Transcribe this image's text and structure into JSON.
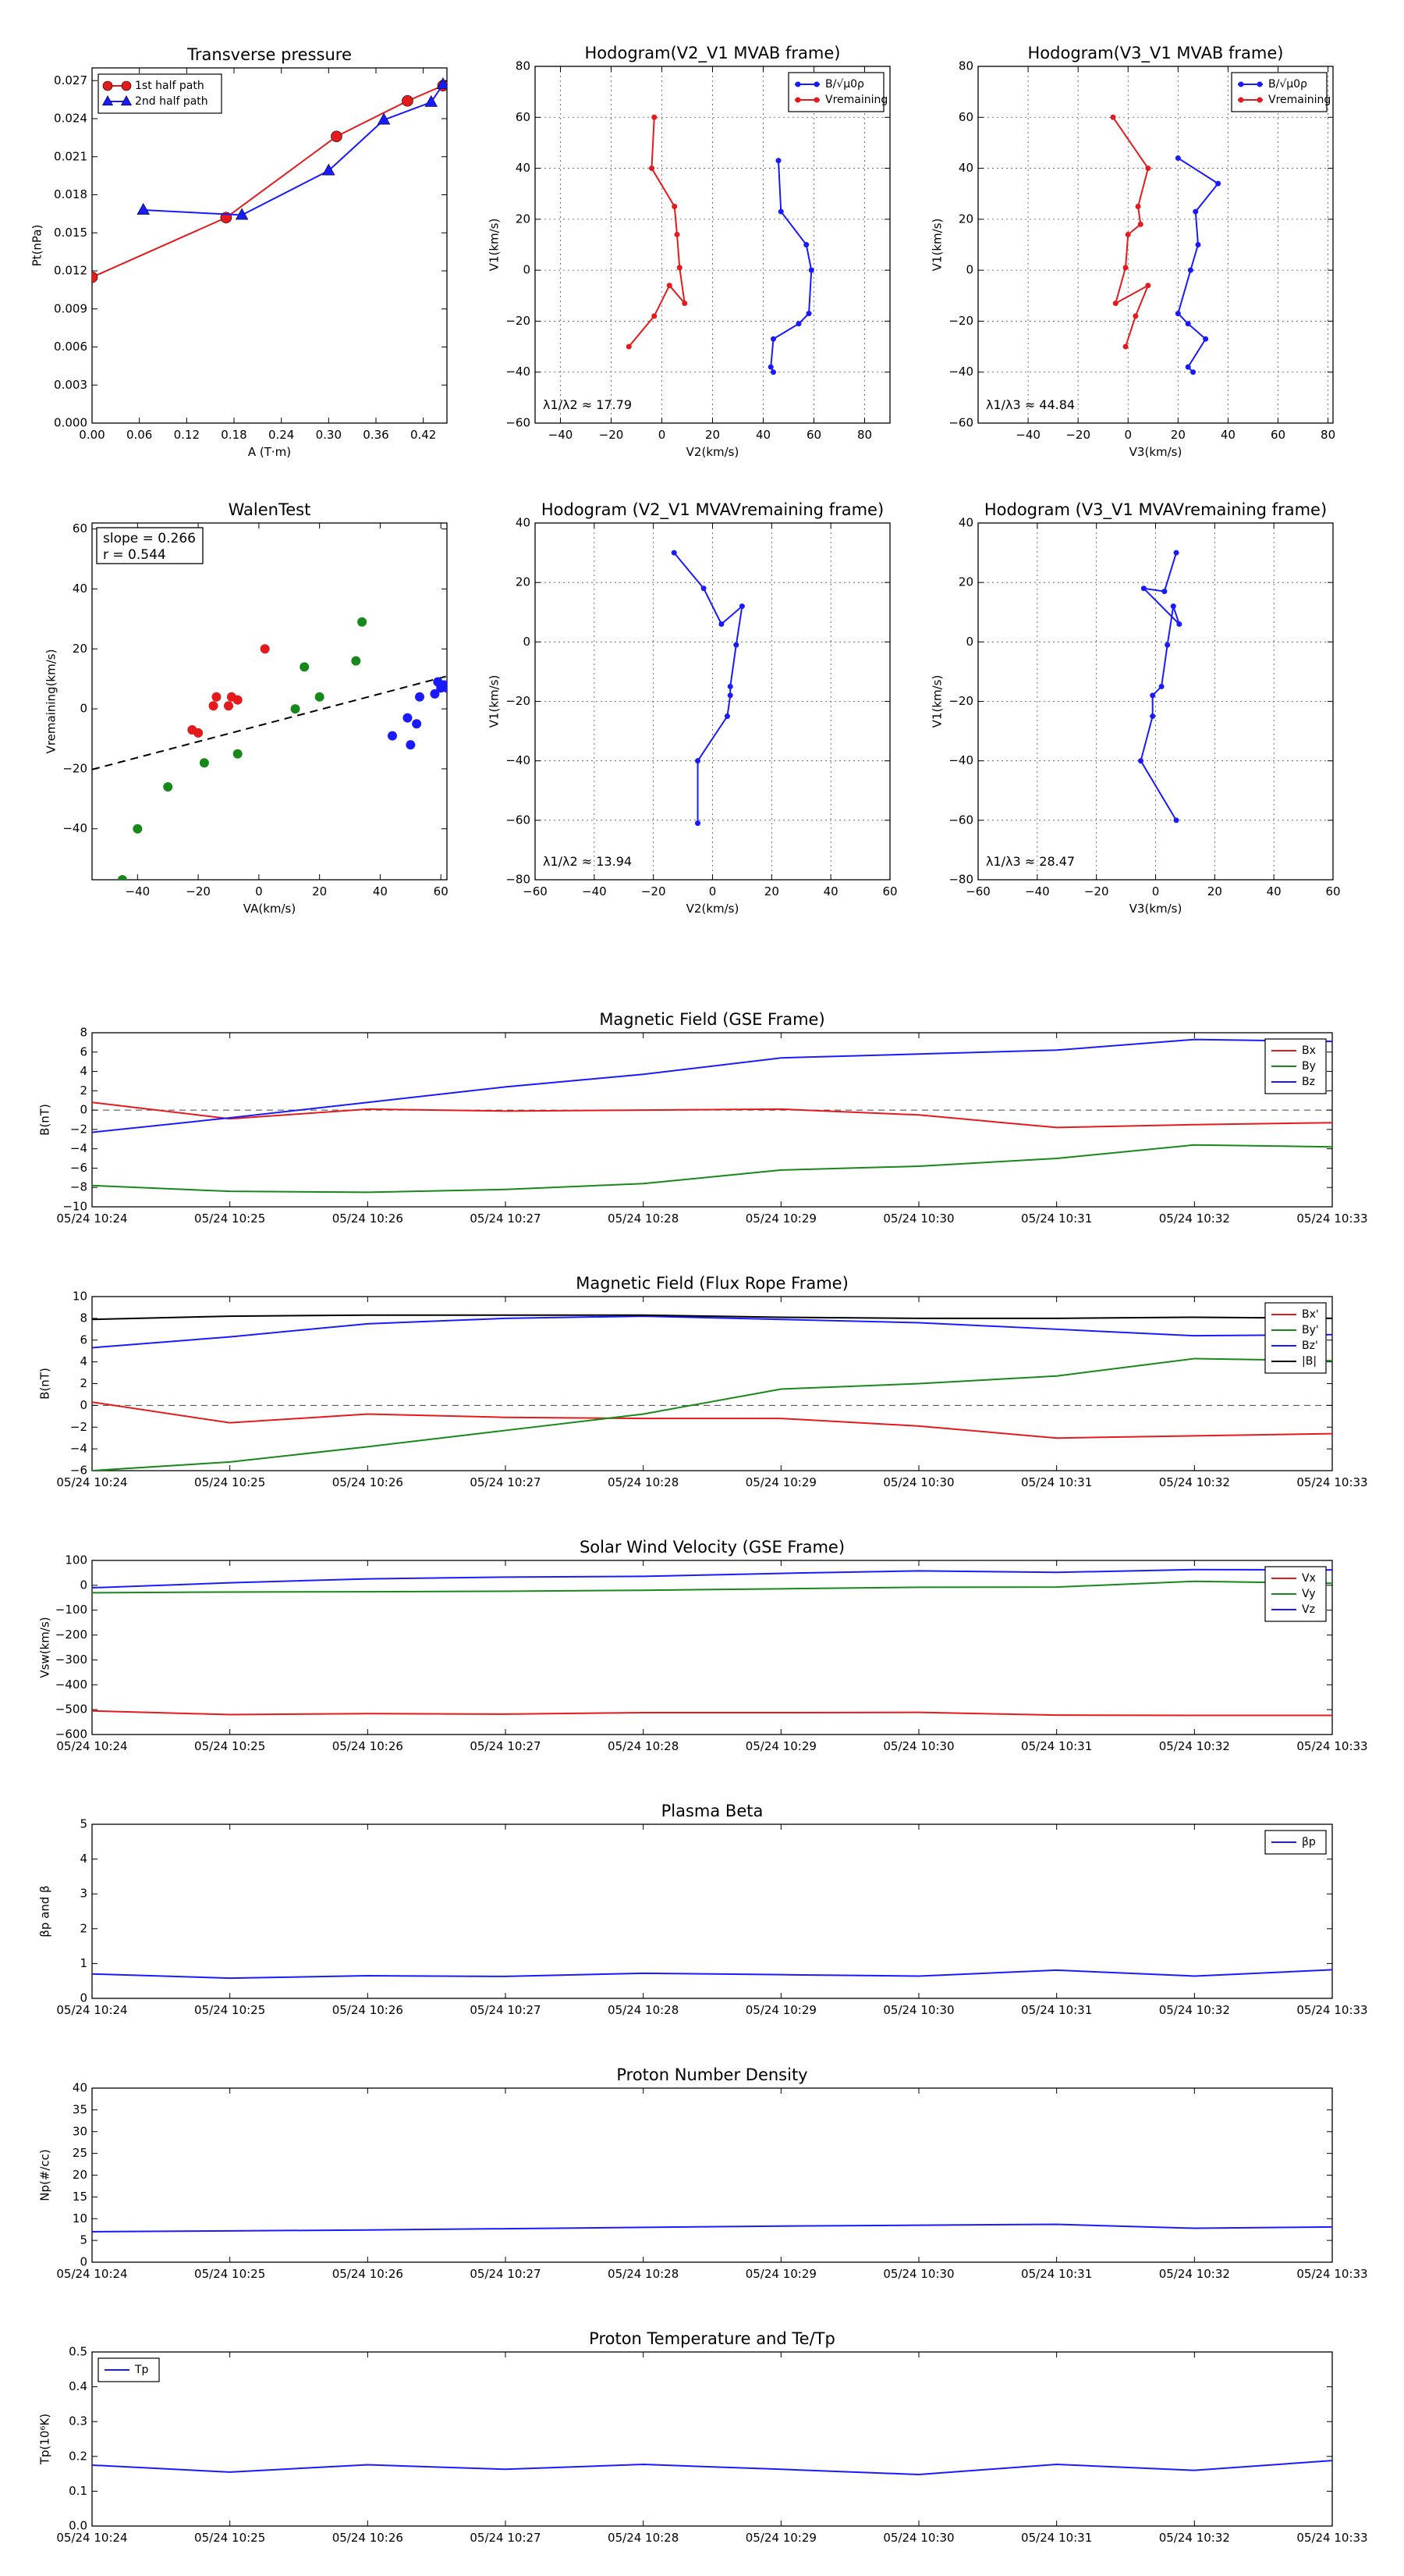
{
  "chart_data": [
    {
      "id": "transverse",
      "type": "line",
      "title": "Transverse pressure",
      "xlabel": "A (T·m)",
      "ylabel": "Pt(nPa)",
      "xlim": [
        0.0,
        0.45
      ],
      "ylim": [
        0.0,
        0.028
      ],
      "xticks": [
        "0.00",
        "0.06",
        "0.12",
        "0.18",
        "0.24",
        "0.30",
        "0.36",
        "0.42"
      ],
      "xtick_values": [
        0.0,
        0.06,
        0.12,
        0.18,
        0.24,
        0.3,
        0.36,
        0.42
      ],
      "yticks": [
        "0.000",
        "0.003",
        "0.006",
        "0.009",
        "0.012",
        "0.015",
        "0.018",
        "0.021",
        "0.024",
        "0.027"
      ],
      "ytick_values": [
        0.0,
        0.003,
        0.006,
        0.009,
        0.012,
        0.015,
        0.018,
        0.021,
        0.024,
        0.027
      ],
      "grid": false,
      "legend_position": "top-left",
      "series": [
        {
          "name": "1st half path",
          "color": "#e41a1c",
          "marker": "circle",
          "x": [
            0.0,
            0.17,
            0.31,
            0.4,
            0.445
          ],
          "y": [
            0.0115,
            0.0162,
            0.0226,
            0.0254,
            0.0266
          ]
        },
        {
          "name": "2nd half path",
          "color": "#1a1aff",
          "marker": "triangle",
          "x": [
            0.065,
            0.19,
            0.3,
            0.37,
            0.43,
            0.445
          ],
          "y": [
            0.0168,
            0.0164,
            0.0199,
            0.0239,
            0.0253,
            0.0267
          ]
        }
      ]
    },
    {
      "id": "hodo_v2_mvab",
      "type": "line",
      "title": "Hodogram(V2_V1 MVAB frame)",
      "xlabel": "V2(km/s)",
      "ylabel": "V1(km/s)",
      "xlim": [
        -50,
        90
      ],
      "ylim": [
        -60,
        80
      ],
      "xticks": [
        "−40",
        "−20",
        "0",
        "20",
        "40",
        "60",
        "80"
      ],
      "xtick_values": [
        -40,
        -20,
        0,
        20,
        40,
        60,
        80
      ],
      "yticks": [
        "−60",
        "−40",
        "−20",
        "0",
        "20",
        "40",
        "60",
        "80"
      ],
      "ytick_values": [
        -60,
        -40,
        -20,
        0,
        20,
        40,
        60,
        80
      ],
      "grid": true,
      "legend_position": "top-right",
      "annotation": "λ1/λ2 ≈ 17.79",
      "series": [
        {
          "name": "B/√μ0ρ",
          "color": "#1a1aff",
          "x": [
            44,
            43,
            44,
            54,
            58,
            59,
            57,
            47,
            46
          ],
          "y": [
            -40,
            -38,
            -27,
            -21,
            -17,
            0,
            10,
            23,
            43
          ]
        },
        {
          "name": "Vremaining",
          "color": "#e41a1c",
          "x": [
            -13,
            -3,
            3,
            9,
            7,
            6,
            5,
            -4,
            -3
          ],
          "y": [
            -30,
            -18,
            -6,
            -13,
            1,
            14,
            25,
            40,
            60
          ]
        }
      ]
    },
    {
      "id": "hodo_v3_mvab",
      "type": "line",
      "title": "Hodogram(V3_V1 MVAB frame)",
      "xlabel": "V3(km/s)",
      "ylabel": "V1(km/s)",
      "xlim": [
        -60,
        82
      ],
      "ylim": [
        -60,
        80
      ],
      "xticks": [
        "−40",
        "−20",
        "0",
        "20",
        "40",
        "60",
        "80"
      ],
      "xtick_values": [
        -40,
        -20,
        0,
        20,
        40,
        60,
        80
      ],
      "yticks": [
        "−60",
        "−40",
        "−20",
        "0",
        "20",
        "40",
        "60",
        "80"
      ],
      "ytick_values": [
        -60,
        -40,
        -20,
        0,
        20,
        40,
        60,
        80
      ],
      "grid": true,
      "legend_position": "top-right",
      "annotation": "λ1/λ3 ≈ 44.84",
      "series": [
        {
          "name": "B/√μ0ρ",
          "color": "#1a1aff",
          "x": [
            26,
            24,
            31,
            24,
            20,
            25,
            28,
            27,
            36,
            20
          ],
          "y": [
            -40,
            -38,
            -27,
            -21,
            -17,
            0,
            10,
            23,
            34,
            44
          ]
        },
        {
          "name": "Vremaining",
          "color": "#e41a1c",
          "x": [
            -1,
            3,
            8,
            -5,
            -1,
            0,
            5,
            4,
            8,
            -6
          ],
          "y": [
            -30,
            -18,
            -6,
            -13,
            1,
            14,
            18,
            25,
            40,
            60
          ]
        }
      ]
    },
    {
      "id": "walen",
      "type": "scatter",
      "title": "WalenTest",
      "xlabel": "VA(km/s)",
      "ylabel": "Vremaining(km/s)",
      "xlim": [
        -55,
        62
      ],
      "ylim": [
        -57,
        62
      ],
      "xticks": [
        "−40",
        "−20",
        "0",
        "20",
        "40",
        "60"
      ],
      "xtick_values": [
        -40,
        -20,
        0,
        20,
        40,
        60
      ],
      "yticks": [
        "−40",
        "−20",
        "0",
        "20",
        "40",
        "60"
      ],
      "ytick_values": [
        -40,
        -20,
        0,
        20,
        40,
        60
      ],
      "grid": false,
      "annotation_lines": [
        "slope = 0.266",
        "r = 0.544"
      ],
      "fit": {
        "slope": 0.266,
        "intercept": -5.6
      },
      "series": [
        {
          "color": "#e41a1c",
          "x": [
            -22,
            -20,
            -15,
            -14,
            -10,
            -9,
            -7,
            2
          ],
          "y": [
            -7,
            -8,
            1,
            4,
            1,
            4,
            3,
            20
          ]
        },
        {
          "color": "#16891a",
          "x": [
            -45,
            -40,
            -30,
            -18,
            -7,
            12,
            15,
            20,
            32,
            34
          ],
          "y": [
            -57,
            -40,
            -26,
            -18,
            -15,
            0,
            14,
            4,
            16,
            29
          ]
        },
        {
          "color": "#1a1aff",
          "x": [
            44,
            49,
            50,
            52,
            53,
            58,
            59,
            60,
            61,
            62
          ],
          "y": [
            -9,
            -3,
            -12,
            -5,
            4,
            5,
            9,
            7,
            8,
            7
          ]
        }
      ]
    },
    {
      "id": "hodo_v2_mvav",
      "type": "line",
      "title": "Hodogram (V2_V1 MVAVremaining frame)",
      "xlabel": "V2(km/s)",
      "ylabel": "V1(km/s)",
      "xlim": [
        -60,
        60
      ],
      "ylim": [
        -80,
        40
      ],
      "xticks": [
        "−60",
        "−40",
        "−20",
        "0",
        "20",
        "40",
        "60"
      ],
      "xtick_values": [
        -60,
        -40,
        -20,
        0,
        20,
        40,
        60
      ],
      "yticks": [
        "−80",
        "−60",
        "−40",
        "−20",
        "0",
        "20",
        "40"
      ],
      "ytick_values": [
        -80,
        -60,
        -40,
        -20,
        0,
        20,
        40
      ],
      "grid": true,
      "annotation": "λ1/λ2 ≈ 13.94",
      "series": [
        {
          "color": "#1a1aff",
          "x": [
            -5,
            -5,
            5,
            6,
            6,
            8,
            10,
            3,
            -3,
            -13
          ],
          "y": [
            -61,
            -40,
            -25,
            -18,
            -15,
            -1,
            12,
            6,
            18,
            30
          ]
        }
      ]
    },
    {
      "id": "hodo_v3_mvav",
      "type": "line",
      "title": "Hodogram (V3_V1 MVAVremaining frame)",
      "xlabel": "V3(km/s)",
      "ylabel": "V1(km/s)",
      "xlim": [
        -60,
        60
      ],
      "ylim": [
        -80,
        40
      ],
      "xticks": [
        "−60",
        "−40",
        "−20",
        "0",
        "20",
        "40",
        "60"
      ],
      "xtick_values": [
        -60,
        -40,
        -20,
        0,
        20,
        40,
        60
      ],
      "yticks": [
        "−80",
        "−60",
        "−40",
        "−20",
        "0",
        "20",
        "40"
      ],
      "ytick_values": [
        -80,
        -60,
        -40,
        -20,
        0,
        20,
        40
      ],
      "grid": true,
      "annotation": "λ1/λ3 ≈ 28.47",
      "series": [
        {
          "color": "#1a1aff",
          "x": [
            7,
            -5,
            -1,
            -1,
            2,
            4,
            6,
            8,
            -4,
            3,
            7
          ],
          "y": [
            -60,
            -40,
            -25,
            -18,
            -15,
            -1,
            12,
            6,
            18,
            17,
            30
          ]
        }
      ]
    },
    {
      "id": "mag_gse",
      "type": "line",
      "title": "Magnetic Field (GSE Frame)",
      "xlabel": "",
      "ylabel": "B(nT)",
      "categories": [
        "05/24 10:24",
        "05/24 10:25",
        "05/24 10:26",
        "05/24 10:27",
        "05/24 10:28",
        "05/24 10:29",
        "05/24 10:30",
        "05/24 10:31",
        "05/24 10:32",
        "05/24 10:33"
      ],
      "ylim": [
        -10,
        8
      ],
      "yticks": [
        "−10",
        "−8",
        "−6",
        "−4",
        "−2",
        "0",
        "2",
        "4",
        "6",
        "8"
      ],
      "ytick_values": [
        -10,
        -8,
        -6,
        -4,
        -2,
        0,
        2,
        4,
        6,
        8
      ],
      "zero_line": true,
      "legend_position": "top-right",
      "series": [
        {
          "name": "Bx",
          "color": "#e41a1c",
          "values": [
            0.8,
            -0.9,
            0.1,
            -0.1,
            0.0,
            0.1,
            -0.5,
            -1.8,
            -1.5,
            -1.3
          ]
        },
        {
          "name": "By",
          "color": "#16891a",
          "values": [
            -7.8,
            -8.4,
            -8.5,
            -8.2,
            -7.6,
            -6.2,
            -5.8,
            -5.0,
            -3.6,
            -3.8
          ]
        },
        {
          "name": "Bz",
          "color": "#1a1aff",
          "values": [
            -2.3,
            -0.8,
            0.8,
            2.4,
            3.7,
            5.4,
            5.8,
            6.2,
            7.3,
            7.1
          ]
        }
      ]
    },
    {
      "id": "mag_fr",
      "type": "line",
      "title": "Magnetic Field (Flux Rope Frame)",
      "xlabel": "",
      "ylabel": "B(nT)",
      "categories": [
        "05/24 10:24",
        "05/24 10:25",
        "05/24 10:26",
        "05/24 10:27",
        "05/24 10:28",
        "05/24 10:29",
        "05/24 10:30",
        "05/24 10:31",
        "05/24 10:32",
        "05/24 10:33"
      ],
      "ylim": [
        -6,
        10
      ],
      "yticks": [
        "−6",
        "−4",
        "−2",
        "0",
        "2",
        "4",
        "6",
        "8",
        "10"
      ],
      "ytick_values": [
        -6,
        -4,
        -2,
        0,
        2,
        4,
        6,
        8,
        10
      ],
      "zero_line": true,
      "legend_position": "top-right",
      "series": [
        {
          "name": "Bx'",
          "color": "#e41a1c",
          "values": [
            0.3,
            -1.6,
            -0.8,
            -1.1,
            -1.2,
            -1.2,
            -1.9,
            -3.0,
            -2.8,
            -2.6
          ]
        },
        {
          "name": "By'",
          "color": "#16891a",
          "values": [
            -6.0,
            -5.2,
            -3.8,
            -2.3,
            -0.8,
            1.5,
            2.0,
            2.7,
            4.3,
            4.1
          ]
        },
        {
          "name": "Bz'",
          "color": "#1a1aff",
          "values": [
            5.3,
            6.3,
            7.5,
            8.0,
            8.2,
            7.9,
            7.6,
            7.0,
            6.4,
            6.5
          ]
        },
        {
          "name": "|B|",
          "color": "#000000",
          "values": [
            7.9,
            8.2,
            8.3,
            8.3,
            8.3,
            8.1,
            8.0,
            8.0,
            8.1,
            8.0
          ]
        }
      ]
    },
    {
      "id": "vsw",
      "type": "line",
      "title": "Solar Wind Velocity (GSE Frame)",
      "xlabel": "",
      "ylabel": "Vsw(km/s)",
      "categories": [
        "05/24 10:24",
        "05/24 10:25",
        "05/24 10:26",
        "05/24 10:27",
        "05/24 10:28",
        "05/24 10:29",
        "05/24 10:30",
        "05/24 10:31",
        "05/24 10:32",
        "05/24 10:33"
      ],
      "ylim": [
        -600,
        100
      ],
      "yticks": [
        "−600",
        "−500",
        "−400",
        "−300",
        "−200",
        "−100",
        "0",
        "100"
      ],
      "ytick_values": [
        -600,
        -500,
        -400,
        -300,
        -200,
        -100,
        0,
        100
      ],
      "legend_position": "top-right",
      "series": [
        {
          "name": "Vx",
          "color": "#e41a1c",
          "values": [
            -505,
            -520,
            -516,
            -518,
            -512,
            -512,
            -511,
            -522,
            -523,
            -523
          ]
        },
        {
          "name": "Vy",
          "color": "#16891a",
          "values": [
            -30,
            -27,
            -26,
            -24,
            -20,
            -14,
            -8,
            -7,
            16,
            8
          ]
        },
        {
          "name": "Vz",
          "color": "#1a1aff",
          "values": [
            -10,
            10,
            26,
            33,
            36,
            48,
            58,
            52,
            63,
            62
          ]
        }
      ]
    },
    {
      "id": "beta",
      "type": "line",
      "title": "Plasma Beta",
      "xlabel": "",
      "ylabel": "βp and β",
      "categories": [
        "05/24 10:24",
        "05/24 10:25",
        "05/24 10:26",
        "05/24 10:27",
        "05/24 10:28",
        "05/24 10:29",
        "05/24 10:30",
        "05/24 10:31",
        "05/24 10:32",
        "05/24 10:33"
      ],
      "ylim": [
        0,
        5
      ],
      "yticks": [
        "0",
        "1",
        "2",
        "3",
        "4",
        "5"
      ],
      "ytick_values": [
        0,
        1,
        2,
        3,
        4,
        5
      ],
      "legend_position": "top-right",
      "series": [
        {
          "name": "βp",
          "color": "#1a1aff",
          "values": [
            0.7,
            0.58,
            0.65,
            0.63,
            0.72,
            0.68,
            0.64,
            0.81,
            0.64,
            0.82
          ]
        }
      ]
    },
    {
      "id": "np",
      "type": "line",
      "title": "Proton Number Density",
      "xlabel": "",
      "ylabel": "Np(#/cc)",
      "categories": [
        "05/24 10:24",
        "05/24 10:25",
        "05/24 10:26",
        "05/24 10:27",
        "05/24 10:28",
        "05/24 10:29",
        "05/24 10:30",
        "05/24 10:31",
        "05/24 10:32",
        "05/24 10:33"
      ],
      "ylim": [
        0,
        40
      ],
      "yticks": [
        "0",
        "5",
        "10",
        "15",
        "20",
        "25",
        "30",
        "35",
        "40"
      ],
      "ytick_values": [
        0,
        5,
        10,
        15,
        20,
        25,
        30,
        35,
        40
      ],
      "series": [
        {
          "color": "#1a1aff",
          "values": [
            7.0,
            7.2,
            7.4,
            7.7,
            8.0,
            8.3,
            8.5,
            8.7,
            7.8,
            8.1
          ]
        }
      ]
    },
    {
      "id": "tp",
      "type": "line",
      "title": "Proton Temperature and Te/Tp",
      "xlabel": "",
      "ylabel": "Tp(10⁶K)",
      "categories": [
        "05/24 10:24",
        "05/24 10:25",
        "05/24 10:26",
        "05/24 10:27",
        "05/24 10:28",
        "05/24 10:29",
        "05/24 10:30",
        "05/24 10:31",
        "05/24 10:32",
        "05/24 10:33"
      ],
      "ylim": [
        0,
        0.5
      ],
      "yticks": [
        "0.0",
        "0.1",
        "0.2",
        "0.3",
        "0.4",
        "0.5"
      ],
      "ytick_values": [
        0,
        0.1,
        0.2,
        0.3,
        0.4,
        0.5
      ],
      "legend_position": "top-left",
      "series": [
        {
          "name": "Tp",
          "color": "#1a1aff",
          "values": [
            0.175,
            0.155,
            0.176,
            0.163,
            0.177,
            0.163,
            0.148,
            0.177,
            0.16,
            0.188
          ]
        }
      ]
    }
  ]
}
